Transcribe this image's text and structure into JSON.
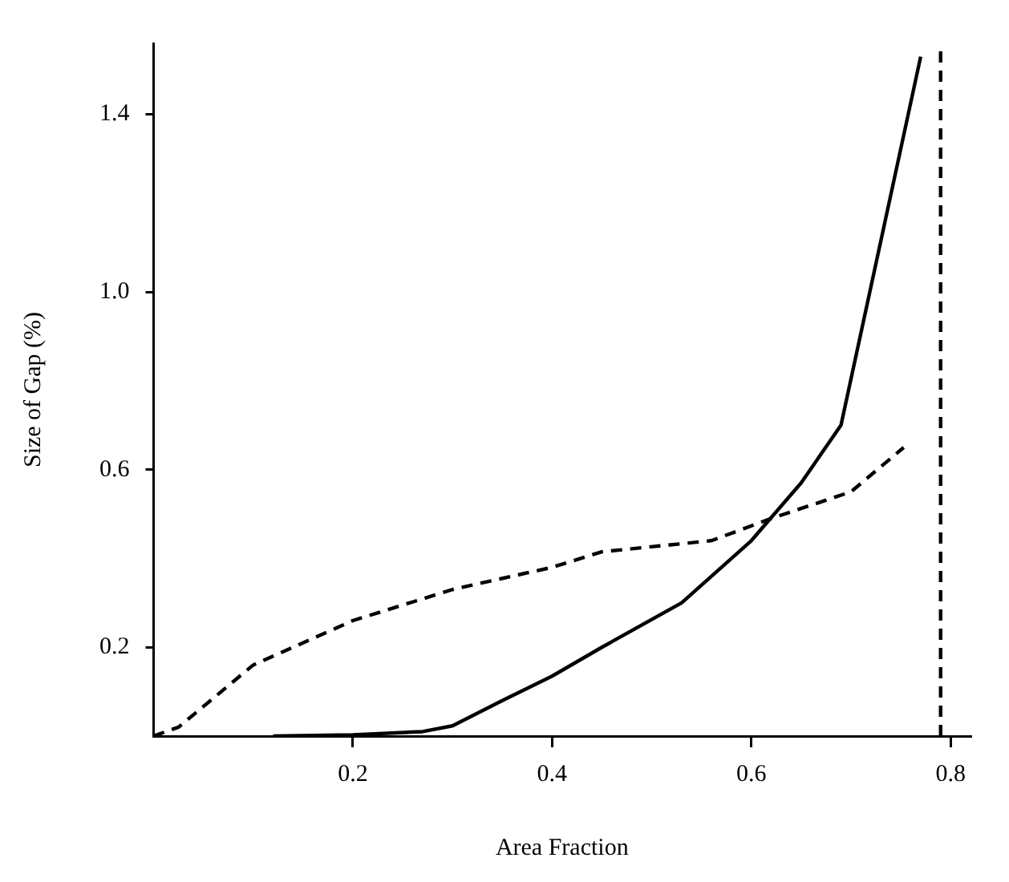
{
  "chart_data": {
    "type": "line",
    "xlabel": "Area Fraction",
    "ylabel": "Size of Gap (%)",
    "xlim": [
      0,
      0.82
    ],
    "ylim": [
      0,
      1.56
    ],
    "xticks": [
      0.2,
      0.4,
      0.6,
      0.8
    ],
    "yticks": [
      0.2,
      0.6,
      {
        "value": 1,
        "label": "1.0"
      },
      1.4
    ],
    "grid": false,
    "legend": false,
    "marker": "none",
    "series": [
      {
        "color": "#000000",
        "line_style": "solid",
        "x": [
          0.12,
          0.2,
          0.27,
          0.3,
          0.35,
          0.4,
          0.45,
          0.53,
          0.6,
          0.65,
          0.69,
          0.77
        ],
        "values": [
          0,
          0.003,
          0.01,
          0.023,
          0.08,
          0.135,
          0.2,
          0.3,
          0.44,
          0.57,
          0.7,
          1.53
        ]
      },
      {
        "color": "#000000",
        "line_style": "dashed",
        "x": [
          0,
          0.025,
          0.1,
          0.2,
          0.3,
          0.4,
          0.45,
          0.56,
          0.62,
          0.7,
          0.753
        ],
        "values": [
          0,
          0.02,
          0.16,
          0.26,
          0.33,
          0.38,
          0.415,
          0.44,
          0.49,
          0.55,
          0.65
        ]
      }
    ],
    "ref_lines": [
      {
        "axis": "x",
        "value": 0.79,
        "color": "#000000",
        "line_style": "dashed"
      }
    ]
  }
}
